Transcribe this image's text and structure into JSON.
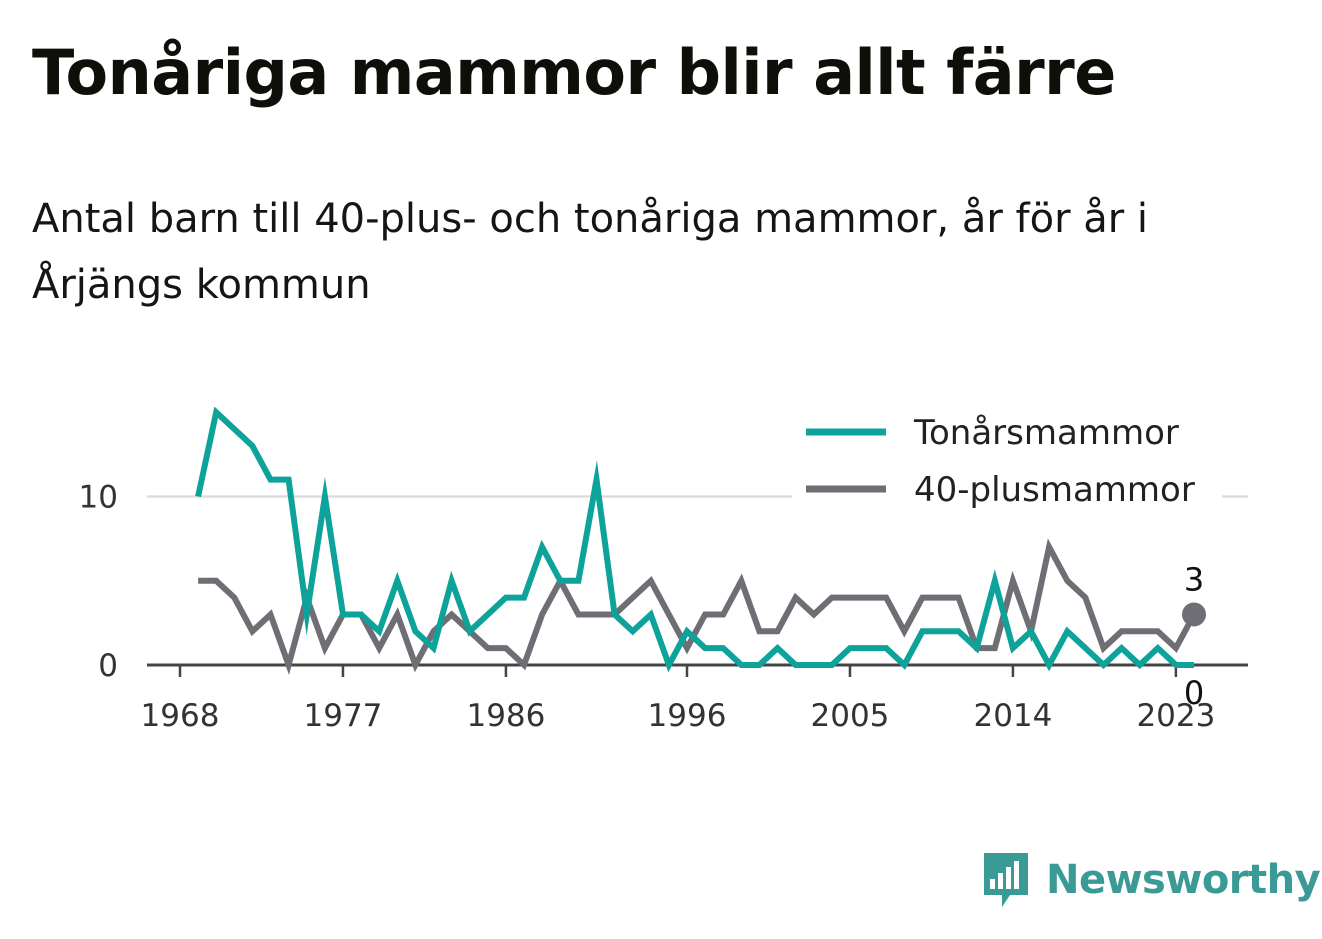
{
  "title": "Tonåriga mammor blir allt färre",
  "subtitle": "Antal barn till 40-plus- och tonåriga mammor, år för år i Årjängs kommun",
  "brand": {
    "name": "Newsworthy"
  },
  "colors": {
    "teal": "#0ea39a",
    "gray": "#6e6e74",
    "grid": "#dddddd",
    "axis": "#444444"
  },
  "chart_data": {
    "type": "line",
    "x": [
      1969,
      1970,
      1971,
      1972,
      1973,
      1974,
      1975,
      1976,
      1977,
      1978,
      1979,
      1980,
      1981,
      1982,
      1983,
      1984,
      1985,
      1986,
      1987,
      1988,
      1989,
      1990,
      1991,
      1992,
      1993,
      1994,
      1995,
      1996,
      1997,
      1998,
      1999,
      2000,
      2001,
      2002,
      2003,
      2004,
      2005,
      2006,
      2007,
      2008,
      2009,
      2010,
      2011,
      2012,
      2013,
      2014,
      2015,
      2016,
      2017,
      2018,
      2019,
      2020,
      2021,
      2022,
      2023,
      2024
    ],
    "xticks": [
      "1968",
      "1977",
      "1986",
      "1996",
      "2005",
      "2014",
      "2023"
    ],
    "yticks": [
      "0",
      "10"
    ],
    "ylim": [
      0,
      16
    ],
    "series": [
      {
        "name": "Tonårsmammor",
        "color": "#0ea39a",
        "values": [
          10,
          15,
          14,
          13,
          11,
          11,
          3,
          10,
          3,
          3,
          2,
          5,
          2,
          1,
          5,
          2,
          3,
          4,
          4,
          7,
          5,
          5,
          11,
          3,
          2,
          3,
          0,
          2,
          1,
          1,
          0,
          0,
          1,
          0,
          0,
          0,
          1,
          1,
          1,
          0,
          2,
          2,
          2,
          1,
          5,
          1,
          2,
          0,
          2,
          1,
          0,
          1,
          0,
          1,
          0,
          0
        ],
        "end_label": "0"
      },
      {
        "name": "40-plusmammor",
        "color": "#6e6e74",
        "values": [
          5,
          5,
          4,
          2,
          3,
          0,
          4,
          1,
          3,
          3,
          1,
          3,
          0,
          2,
          3,
          2,
          1,
          1,
          0,
          3,
          5,
          3,
          3,
          3,
          4,
          5,
          3,
          1,
          3,
          3,
          5,
          2,
          2,
          4,
          3,
          4,
          4,
          4,
          4,
          2,
          4,
          4,
          4,
          1,
          1,
          5,
          2,
          7,
          5,
          4,
          1,
          2,
          2,
          2,
          1,
          3
        ],
        "end_label": "3"
      }
    ],
    "legend_position": "top-right",
    "grid": true
  }
}
